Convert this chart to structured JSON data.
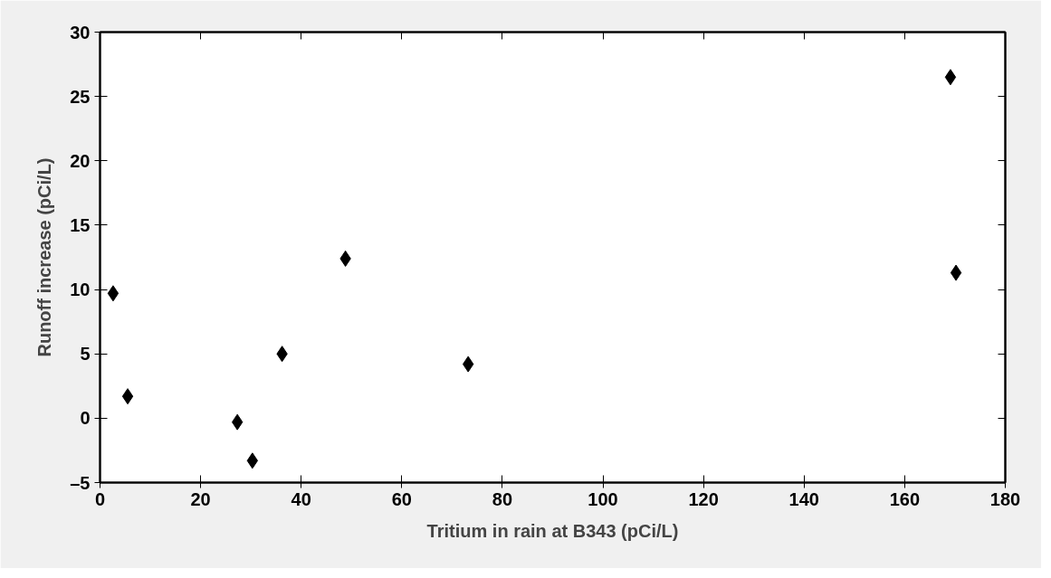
{
  "chart_data": {
    "type": "scatter",
    "xlabel": "Tritium in rain at B343 (pCi/L)",
    "ylabel": "Runoff increase (pCi/L)",
    "x": [
      2.6,
      5.5,
      27.3,
      30.3,
      36.2,
      48.8,
      73.2,
      169.1,
      170.2
    ],
    "series": [
      {
        "color": "#000000",
        "values": [
          9.7,
          1.7,
          -0.3,
          -3.3,
          5.0,
          12.4,
          4.2,
          26.5,
          11.3
        ]
      }
    ],
    "xlim": [
      0,
      180
    ],
    "xticks": [
      0,
      20,
      40,
      60,
      80,
      100,
      120,
      140,
      160,
      180
    ],
    "ylim": [
      -5,
      30
    ],
    "yticks": [
      {
        "value": -5,
        "label": "–5"
      },
      0,
      5,
      10,
      15,
      20,
      25,
      30
    ],
    "grid": false,
    "marker": "diamond"
  }
}
